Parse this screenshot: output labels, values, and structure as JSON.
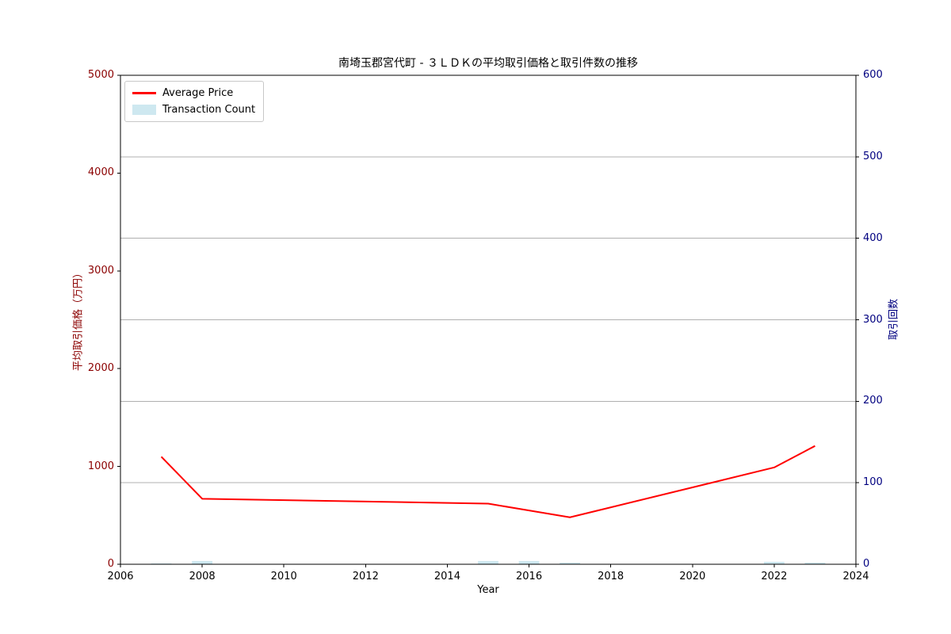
{
  "title_bar": "南埼玉郡宮代町 - ３ＬＤＫの平均取引価格と取引件数の推移",
  "legend": {
    "price": "Average Price",
    "count": "Transaction Count"
  },
  "colors": {
    "price_line": "#ff0000",
    "count_bar": "#add8e6",
    "count_bar_opacity": 0.6,
    "left_axis_text": "#8b0000",
    "right_axis_text": "#000080",
    "x_axis_text": "#000000",
    "grid": "#b0b0b0",
    "spine": "#000000",
    "legend_border": "#c8c8c8"
  },
  "chart_data": {
    "type": "combo",
    "title": "南埼玉郡宮代町 - ３ＬＤＫの平均取引価格と取引件数の推移",
    "xlabel": "Year",
    "ylabel_left": "平均取引価格（万円）",
    "ylabel_right": "取引回数",
    "x": [
      2007,
      2008,
      2015,
      2016,
      2017,
      2022,
      2023
    ],
    "series": [
      {
        "name": "Average Price",
        "type": "line",
        "axis": "left",
        "color": "#ff0000",
        "values": [
          1100,
          670,
          620,
          550,
          480,
          990,
          1210
        ]
      },
      {
        "name": "Transaction Count",
        "type": "bar",
        "axis": "right",
        "color": "#add8e6",
        "values": [
          1,
          4,
          4,
          4,
          2,
          3,
          2
        ]
      }
    ],
    "xlim": [
      2006,
      2024
    ],
    "ylim_left": [
      0,
      5000
    ],
    "ylim_right": [
      0,
      600
    ],
    "xticks": [
      2006,
      2008,
      2010,
      2012,
      2014,
      2016,
      2018,
      2020,
      2022,
      2024
    ],
    "yticks_left": [
      0,
      1000,
      2000,
      3000,
      4000,
      5000
    ],
    "yticks_right": [
      0,
      100,
      200,
      300,
      400,
      500,
      600
    ],
    "grid": "horizontal-only, aligned to right-axis ticks 100-500",
    "legend_position": "upper left",
    "bar_width_years": 0.5
  }
}
